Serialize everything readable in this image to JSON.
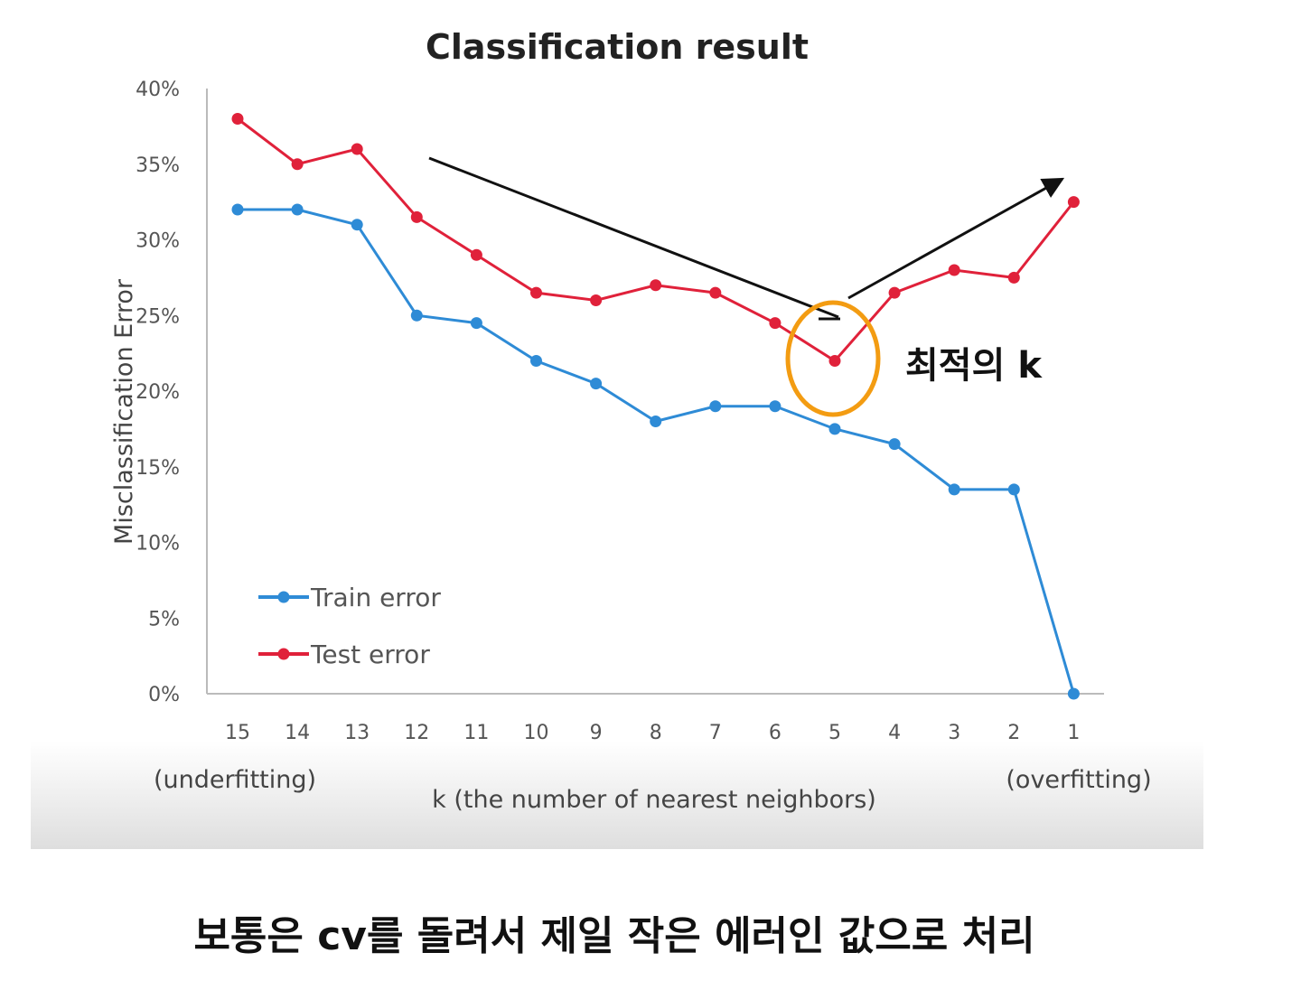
{
  "chart_data": {
    "type": "line",
    "title": "Classification result",
    "xlabel": "k (the number of nearest neighbors)",
    "x_left_note": "(underfitting)",
    "x_right_note": "(overfitting)",
    "ylabel": "Misclassification Error",
    "categories": [
      "15",
      "14",
      "13",
      "12",
      "11",
      "10",
      "9",
      "8",
      "7",
      "6",
      "5",
      "4",
      "3",
      "2",
      "1"
    ],
    "y_ticks": [
      "0%",
      "5%",
      "10%",
      "15%",
      "20%",
      "25%",
      "30%",
      "35%",
      "40%"
    ],
    "ylim": [
      0,
      40
    ],
    "series": [
      {
        "name": "Train error",
        "color": "#2e8bd6",
        "values": [
          32,
          32,
          31,
          25,
          24.5,
          22,
          20.5,
          18,
          19,
          19,
          17.5,
          16.5,
          13.5,
          13.5,
          0
        ]
      },
      {
        "name": "Test error",
        "color": "#e0213a",
        "values": [
          38,
          35,
          36,
          31.5,
          29,
          26.5,
          26,
          27,
          26.5,
          24.5,
          22,
          26.5,
          28,
          27.5,
          32.5
        ]
      }
    ],
    "legend_position": "bottom-left",
    "grid": false,
    "highlight": {
      "category": "5",
      "color": "#f39c12",
      "label": "최적의 k"
    }
  },
  "caption": "보통은 cv를 돌려서 제일 작은 에러인 값으로 처리"
}
